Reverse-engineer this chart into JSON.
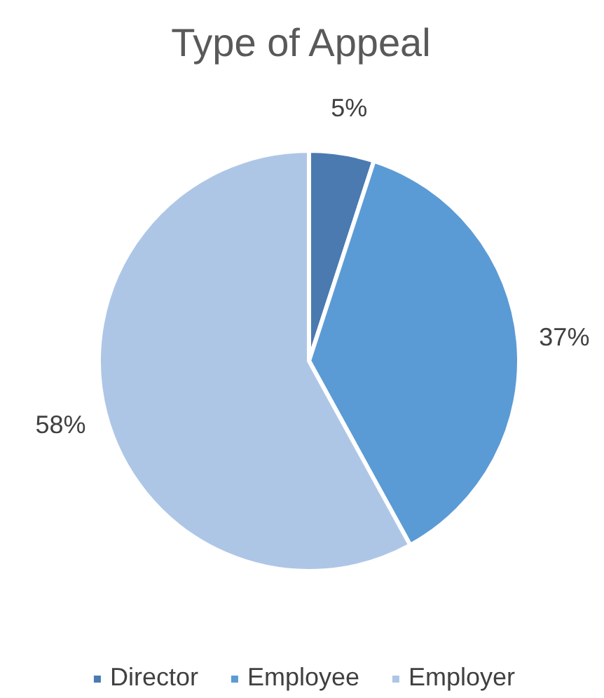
{
  "chart_data": {
    "type": "pie",
    "title": "Type of Appeal",
    "categories": [
      "Director",
      "Employee",
      "Employer"
    ],
    "values": [
      5,
      37,
      58
    ],
    "colors": [
      "#4a7ab0",
      "#5b9bd5",
      "#aec6e6"
    ],
    "value_labels": [
      "5%",
      "37%",
      "58%"
    ],
    "legend": "bottom"
  }
}
